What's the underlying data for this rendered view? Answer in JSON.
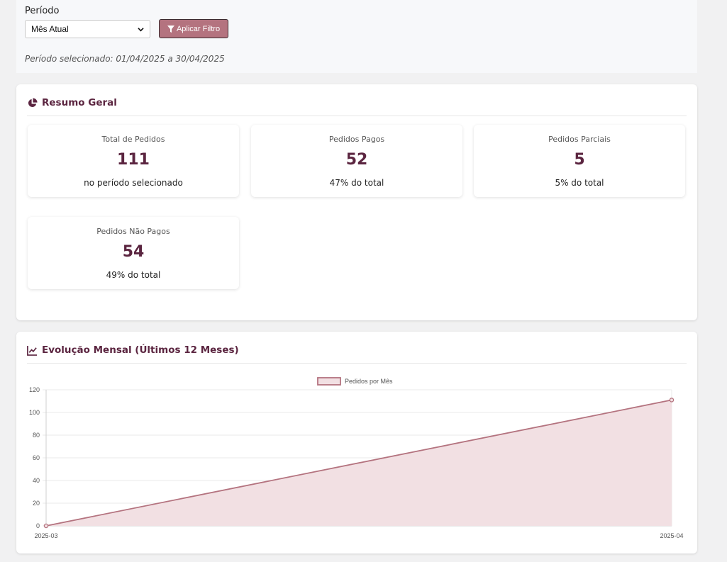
{
  "filter": {
    "label": "Período",
    "select_value": "Mês Atual",
    "apply_label": "Aplicar Filtro",
    "period_text": "Período selecionado: 01/04/2025 a 30/04/2025"
  },
  "summary": {
    "title": "Resumo Geral",
    "stats": [
      {
        "label": "Total de Pedidos",
        "value": "111",
        "sub": "no período selecionado"
      },
      {
        "label": "Pedidos Pagos",
        "value": "52",
        "sub": "47% do total"
      },
      {
        "label": "Pedidos Parciais",
        "value": "5",
        "sub": "5% do total"
      },
      {
        "label": "Pedidos Não Pagos",
        "value": "54",
        "sub": "49% do total"
      }
    ]
  },
  "evolution": {
    "title": "Evolução Mensal (Últimos 12 Meses)"
  },
  "colors": {
    "accent": "#b4737f",
    "title": "#5b2540",
    "area_fill": "#f2e0e3"
  },
  "chart_data": {
    "type": "area",
    "x": [
      "2025-03",
      "2025-04"
    ],
    "series": [
      {
        "name": "Pedidos por Mês",
        "values": [
          0,
          111
        ]
      }
    ],
    "ylim": [
      0,
      120
    ],
    "yticks": [
      0,
      20,
      40,
      60,
      80,
      100,
      120
    ],
    "grid": true,
    "legend": "top-center"
  }
}
